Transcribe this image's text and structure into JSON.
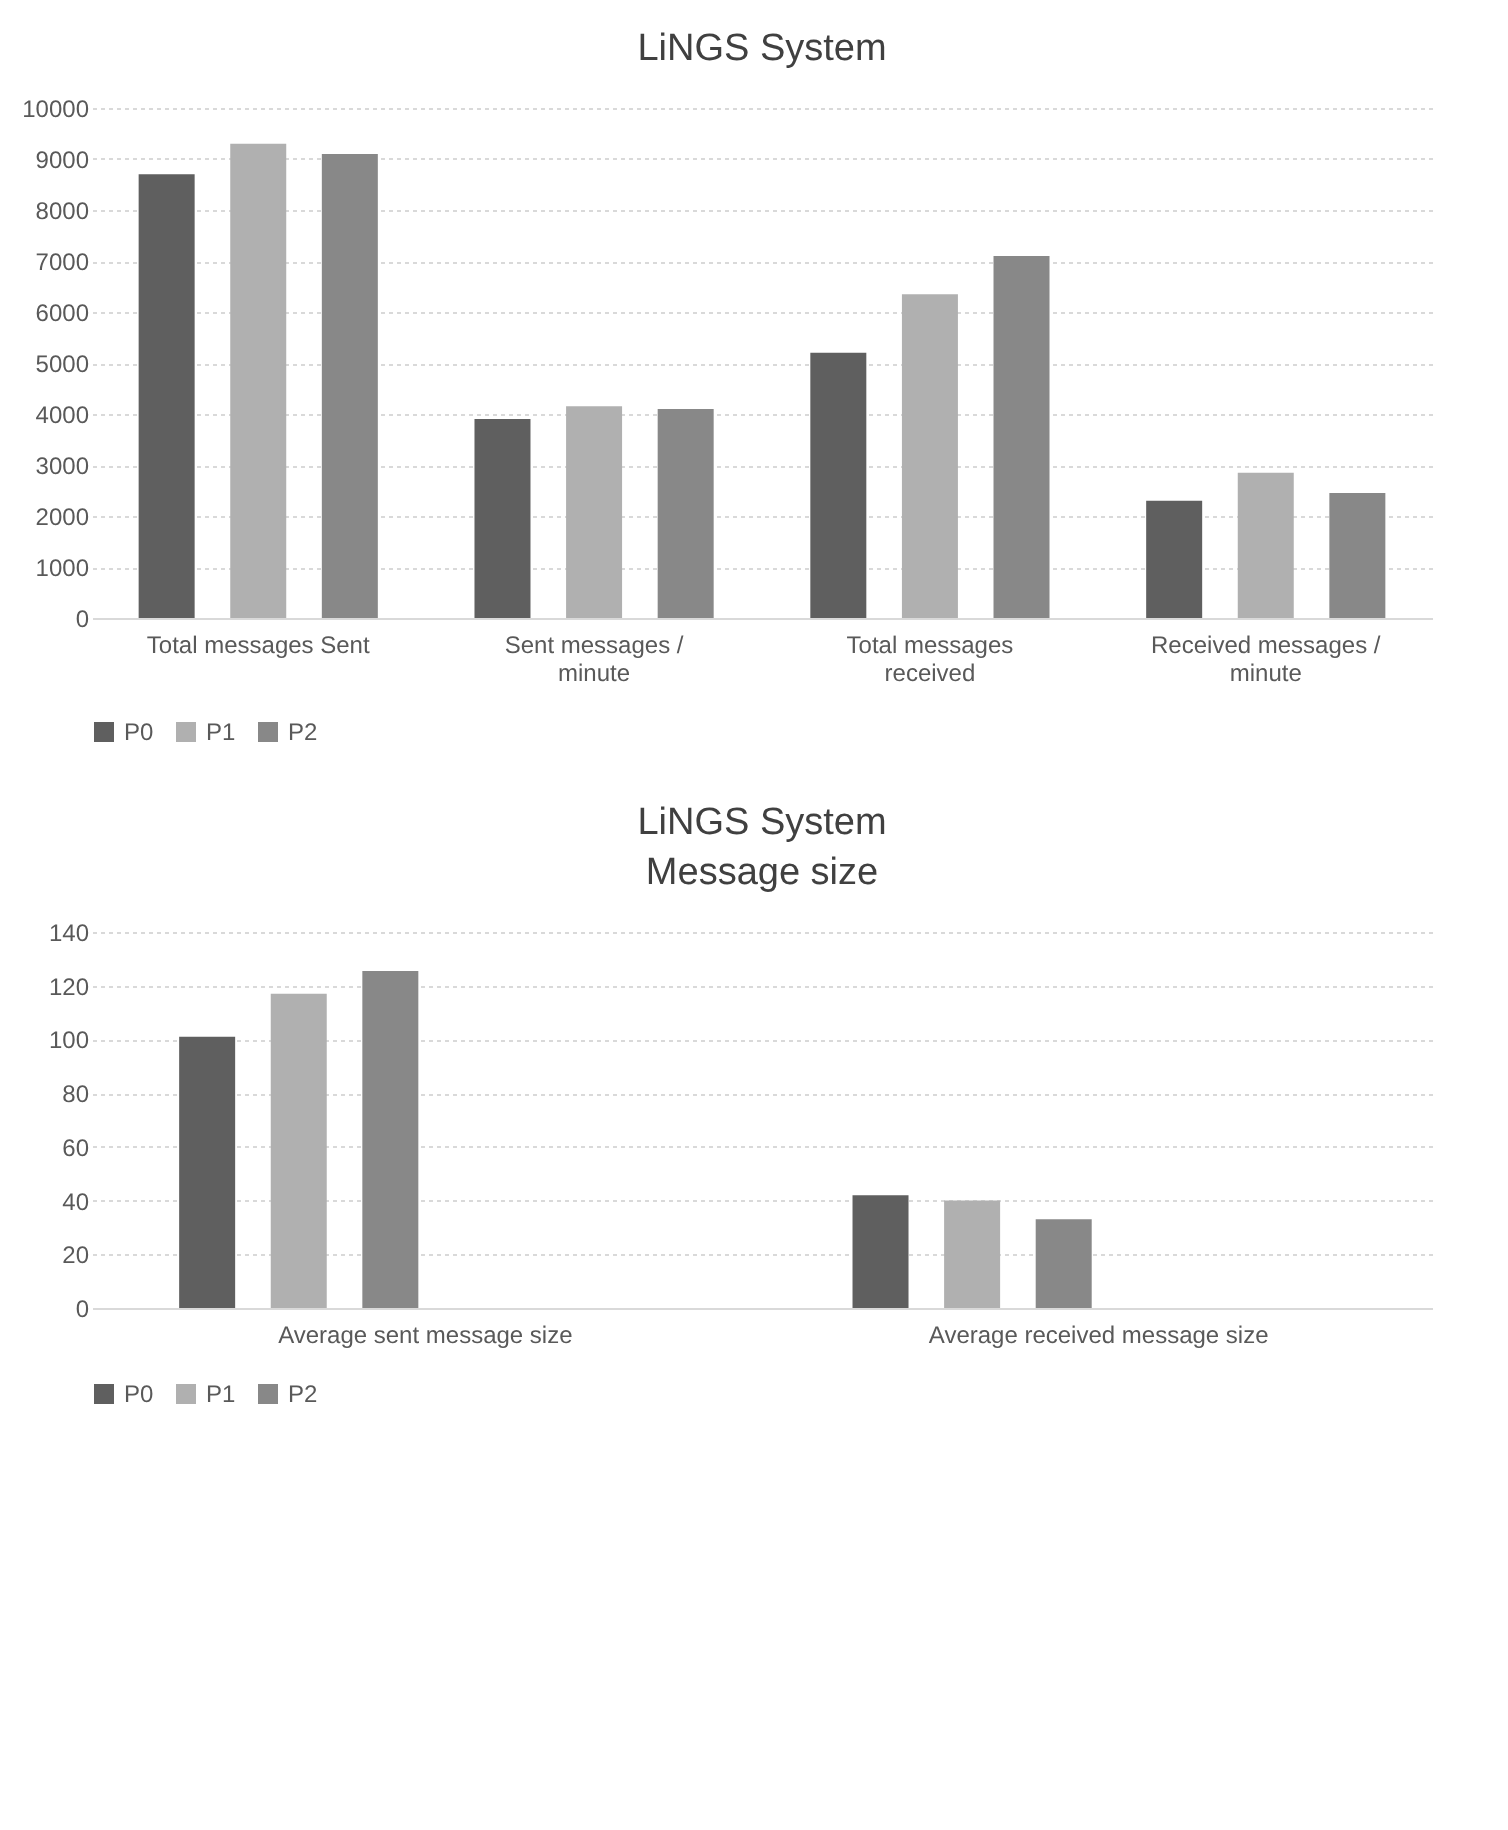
{
  "chart_data": [
    {
      "type": "bar",
      "title": "LiNGS System",
      "categories": [
        "Total messages Sent",
        "Sent messages / minute",
        "Total messages received",
        "Received messages / minute"
      ],
      "series": [
        {
          "name": "P0",
          "color": "#5f5f5f",
          "values": [
            8700,
            3900,
            5200,
            2300
          ]
        },
        {
          "name": "P1",
          "color": "#b0b0b0",
          "values": [
            9300,
            4150,
            6350,
            2850
          ]
        },
        {
          "name": "P2",
          "color": "#888888",
          "values": [
            9100,
            4100,
            7100,
            2450
          ]
        }
      ],
      "ylim": [
        0,
        10000
      ],
      "yticks": [
        0,
        1000,
        2000,
        3000,
        4000,
        5000,
        6000,
        7000,
        8000,
        9000,
        10000
      ],
      "grid": "y",
      "legend": "bottom"
    },
    {
      "type": "bar",
      "title": "LiNGS System",
      "subtitle": "Message size",
      "categories": [
        "Average sent message size",
        "Average received message size"
      ],
      "series": [
        {
          "name": "P0",
          "color": "#5f5f5f",
          "values": [
            101,
            42
          ]
        },
        {
          "name": "P1",
          "color": "#b0b0b0",
          "values": [
            117,
            40
          ]
        },
        {
          "name": "P2",
          "color": "#888888",
          "values": [
            125.5,
            33
          ]
        }
      ],
      "ylim": [
        0,
        140
      ],
      "yticks": [
        0,
        20,
        40,
        60,
        80,
        100,
        120,
        140
      ],
      "grid": "y",
      "legend": "bottom"
    }
  ]
}
